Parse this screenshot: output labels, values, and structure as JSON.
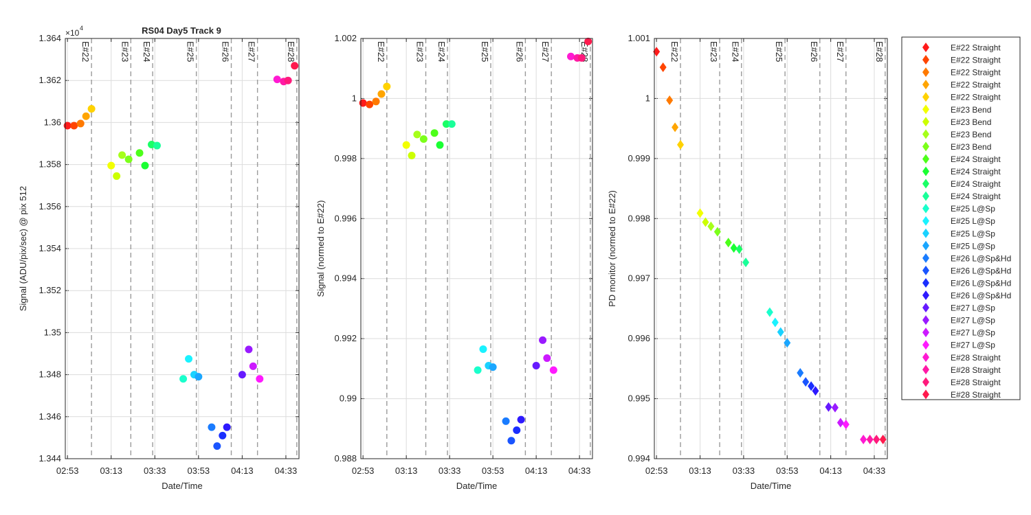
{
  "figure": {
    "title": "RS04 Day5 Track 9",
    "exponent_label": "×10",
    "exponent_power": "4",
    "xlabel": "Date/Time",
    "x_ticks": [
      "02:53",
      "03:13",
      "03:33",
      "03:53",
      "04:13",
      "04:33"
    ]
  },
  "legend": {
    "entries": [
      {
        "label": "E#22 Straight",
        "color": "#ff1a1a"
      },
      {
        "label": "E#22 Straight",
        "color": "#ff4500"
      },
      {
        "label": "E#22 Straight",
        "color": "#ff7a00"
      },
      {
        "label": "E#22 Straight",
        "color": "#ffa500"
      },
      {
        "label": "E#22 Straight",
        "color": "#ffd200"
      },
      {
        "label": "E#23 Bend",
        "color": "#f2ff00"
      },
      {
        "label": "E#23 Bend",
        "color": "#ccff00"
      },
      {
        "label": "E#23 Bend",
        "color": "#a6ff1a"
      },
      {
        "label": "E#23 Bend",
        "color": "#7cff1a"
      },
      {
        "label": "E#24 Straight",
        "color": "#4dff1a"
      },
      {
        "label": "E#24 Straight",
        "color": "#1aff33"
      },
      {
        "label": "E#24 Straight",
        "color": "#1aff66"
      },
      {
        "label": "E#24 Straight",
        "color": "#1aff99"
      },
      {
        "label": "E#25 L@Sp",
        "color": "#1affcc"
      },
      {
        "label": "E#25 L@Sp",
        "color": "#1af2ff"
      },
      {
        "label": "E#25 L@Sp",
        "color": "#1ad2ff"
      },
      {
        "label": "E#25 L@Sp",
        "color": "#1aa6ff"
      },
      {
        "label": "E#26 L@Sp&Hd",
        "color": "#1a7cff"
      },
      {
        "label": "E#26 L@Sp&Hd",
        "color": "#1a55ff"
      },
      {
        "label": "E#26 L@Sp&Hd",
        "color": "#1a2eff"
      },
      {
        "label": "E#26 L@Sp&Hd",
        "color": "#2e1aff"
      },
      {
        "label": "E#27 L@Sp",
        "color": "#661aff"
      },
      {
        "label": "E#27 L@Sp",
        "color": "#991aff"
      },
      {
        "label": "E#27 L@Sp",
        "color": "#cc1aff"
      },
      {
        "label": "E#27 L@Sp",
        "color": "#ff1aff"
      },
      {
        "label": "E#28 Straight",
        "color": "#ff1ad2"
      },
      {
        "label": "E#28 Straight",
        "color": "#ff1aa6"
      },
      {
        "label": "E#28 Straight",
        "color": "#ff1a7c"
      },
      {
        "label": "E#28 Straight",
        "color": "#ff1a4d"
      }
    ]
  },
  "chart_data": [
    {
      "type": "scatter",
      "title": "RS04 Day5 Track 9",
      "xlabel": "Date/Time",
      "ylabel": "Signal (ADU/pix/sec) @ pix 512",
      "x_unit": "minutes after 02:53",
      "xlim": [
        -1,
        106
      ],
      "ylim": [
        1.344,
        1.364
      ],
      "y_scale_note": "×10^4",
      "yticks": [
        "1.344",
        "1.346",
        "1.348",
        "1.35",
        "1.352",
        "1.354",
        "1.356",
        "1.358",
        "1.36",
        "1.362",
        "1.364"
      ],
      "xticks": [
        "02:53",
        "03:13",
        "03:33",
        "03:53",
        "04:13",
        "04:33"
      ],
      "marker": "circle",
      "vlines": [
        {
          "label": "E#22",
          "x": 11
        },
        {
          "label": "E#23",
          "x": 29
        },
        {
          "label": "E#24",
          "x": 39
        },
        {
          "label": "E#25",
          "x": 59
        },
        {
          "label": "E#26",
          "x": 75
        },
        {
          "label": "E#27",
          "x": 87
        },
        {
          "label": "E#28",
          "x": 105
        }
      ],
      "points": [
        {
          "x": 0,
          "y": 1.35985
        },
        {
          "x": 3,
          "y": 1.35985
        },
        {
          "x": 6,
          "y": 1.35995
        },
        {
          "x": 8.5,
          "y": 1.3603
        },
        {
          "x": 11,
          "y": 1.36065
        },
        {
          "x": 20,
          "y": 1.35795
        },
        {
          "x": 22.5,
          "y": 1.35745
        },
        {
          "x": 25,
          "y": 1.35845
        },
        {
          "x": 28,
          "y": 1.35825
        },
        {
          "x": 33,
          "y": 1.35855
        },
        {
          "x": 35.5,
          "y": 1.35795
        },
        {
          "x": 38.5,
          "y": 1.35895
        },
        {
          "x": 41,
          "y": 1.3589
        },
        {
          "x": 53,
          "y": 1.3478
        },
        {
          "x": 55.5,
          "y": 1.34875
        },
        {
          "x": 58,
          "y": 1.348
        },
        {
          "x": 60,
          "y": 1.3479
        },
        {
          "x": 66,
          "y": 1.3455
        },
        {
          "x": 68.5,
          "y": 1.3446
        },
        {
          "x": 71,
          "y": 1.3451
        },
        {
          "x": 73,
          "y": 1.3455
        },
        {
          "x": 80,
          "y": 1.348
        },
        {
          "x": 83,
          "y": 1.3492
        },
        {
          "x": 85,
          "y": 1.3484
        },
        {
          "x": 88,
          "y": 1.3478
        },
        {
          "x": 96,
          "y": 1.36205
        },
        {
          "x": 99,
          "y": 1.36195
        },
        {
          "x": 101,
          "y": 1.362
        },
        {
          "x": 104,
          "y": 1.3627
        }
      ]
    },
    {
      "type": "scatter",
      "xlabel": "Date/Time",
      "ylabel": "Signal (normed to E#22)",
      "x_unit": "minutes after 02:53",
      "xlim": [
        -1,
        106
      ],
      "ylim": [
        0.988,
        1.002
      ],
      "yticks": [
        "0.988",
        "0.99",
        "0.992",
        "0.994",
        "0.996",
        "0.998",
        "1",
        "1.002"
      ],
      "xticks": [
        "02:53",
        "03:13",
        "03:33",
        "03:53",
        "04:13",
        "04:33"
      ],
      "marker": "circle",
      "vlines": [
        {
          "label": "E#22",
          "x": 11
        },
        {
          "label": "E#23",
          "x": 29
        },
        {
          "label": "E#24",
          "x": 39
        },
        {
          "label": "E#25",
          "x": 59
        },
        {
          "label": "E#26",
          "x": 75
        },
        {
          "label": "E#27",
          "x": 87
        },
        {
          "label": "E#28",
          "x": 105
        }
      ],
      "points": [
        {
          "x": 0,
          "y": 0.99985
        },
        {
          "x": 3,
          "y": 0.9998
        },
        {
          "x": 6,
          "y": 0.9999
        },
        {
          "x": 8.5,
          "y": 1.00015
        },
        {
          "x": 11,
          "y": 1.0004
        },
        {
          "x": 20,
          "y": 0.99845
        },
        {
          "x": 22.5,
          "y": 0.9981
        },
        {
          "x": 25,
          "y": 0.9988
        },
        {
          "x": 28,
          "y": 0.99865
        },
        {
          "x": 33,
          "y": 0.99885
        },
        {
          "x": 35.5,
          "y": 0.99845
        },
        {
          "x": 38.5,
          "y": 0.99915
        },
        {
          "x": 41,
          "y": 0.99915
        },
        {
          "x": 53,
          "y": 0.99095
        },
        {
          "x": 55.5,
          "y": 0.99165
        },
        {
          "x": 58,
          "y": 0.9911
        },
        {
          "x": 60,
          "y": 0.99105
        },
        {
          "x": 66,
          "y": 0.98925
        },
        {
          "x": 68.5,
          "y": 0.9886
        },
        {
          "x": 71,
          "y": 0.98895
        },
        {
          "x": 73,
          "y": 0.9893
        },
        {
          "x": 80,
          "y": 0.9911
        },
        {
          "x": 83,
          "y": 0.99195
        },
        {
          "x": 85,
          "y": 0.99135
        },
        {
          "x": 88,
          "y": 0.99095
        },
        {
          "x": 96,
          "y": 1.0014
        },
        {
          "x": 99,
          "y": 1.00135
        },
        {
          "x": 101,
          "y": 1.00135
        },
        {
          "x": 104,
          "y": 1.0019
        }
      ]
    },
    {
      "type": "scatter",
      "xlabel": "Date/Time",
      "ylabel": "PD monitor (normed to E#22)",
      "x_unit": "minutes after 02:53",
      "xlim": [
        -1,
        106
      ],
      "ylim": [
        0.994,
        1.001
      ],
      "yticks": [
        "0.994",
        "0.995",
        "0.996",
        "0.997",
        "0.998",
        "0.999",
        "1",
        "1.001"
      ],
      "xticks": [
        "02:53",
        "03:13",
        "03:33",
        "03:53",
        "04:13",
        "04:33"
      ],
      "marker": "diamond",
      "vlines": [
        {
          "label": "E#22",
          "x": 11
        },
        {
          "label": "E#23",
          "x": 29
        },
        {
          "label": "E#24",
          "x": 39
        },
        {
          "label": "E#25",
          "x": 59
        },
        {
          "label": "E#26",
          "x": 75
        },
        {
          "label": "E#27",
          "x": 87
        },
        {
          "label": "E#28",
          "x": 105
        }
      ],
      "points": [
        {
          "x": 0,
          "y": 1.00078
        },
        {
          "x": 3,
          "y": 1.00052
        },
        {
          "x": 6,
          "y": 0.99997
        },
        {
          "x": 8.5,
          "y": 0.99952
        },
        {
          "x": 11,
          "y": 0.99923
        },
        {
          "x": 20,
          "y": 0.99809
        },
        {
          "x": 22.5,
          "y": 0.99794
        },
        {
          "x": 25,
          "y": 0.99787
        },
        {
          "x": 28,
          "y": 0.99778
        },
        {
          "x": 33,
          "y": 0.9976
        },
        {
          "x": 35.5,
          "y": 0.99751
        },
        {
          "x": 38,
          "y": 0.99749
        },
        {
          "x": 41,
          "y": 0.99727
        },
        {
          "x": 52,
          "y": 0.99644
        },
        {
          "x": 54.5,
          "y": 0.99627
        },
        {
          "x": 57,
          "y": 0.99611
        },
        {
          "x": 60,
          "y": 0.99593
        },
        {
          "x": 66,
          "y": 0.99543
        },
        {
          "x": 68.5,
          "y": 0.99528
        },
        {
          "x": 71,
          "y": 0.99521
        },
        {
          "x": 73,
          "y": 0.99513
        },
        {
          "x": 79,
          "y": 0.99486
        },
        {
          "x": 82,
          "y": 0.99485
        },
        {
          "x": 84.5,
          "y": 0.9946
        },
        {
          "x": 87,
          "y": 0.99457
        },
        {
          "x": 95,
          "y": 0.99432
        },
        {
          "x": 98,
          "y": 0.99432
        },
        {
          "x": 101,
          "y": 0.99432
        },
        {
          "x": 104,
          "y": 0.99432
        }
      ]
    }
  ]
}
